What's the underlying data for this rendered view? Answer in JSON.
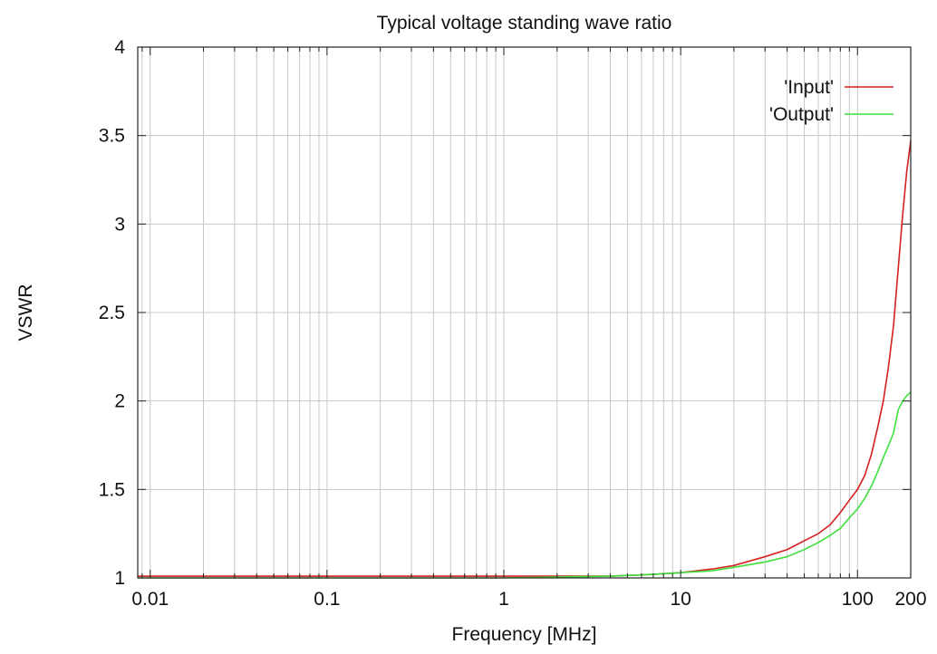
{
  "chart_data": {
    "type": "line",
    "title": "Typical voltage standing wave ratio",
    "xlabel": "Frequency [MHz]",
    "ylabel": "VSWR",
    "xscale": "log",
    "xlim": [
      0.0085,
      200
    ],
    "ylim": [
      1,
      4
    ],
    "grid": true,
    "legend_position": "top-right",
    "x_ticks": [
      {
        "value": 0.01,
        "label": "0.01"
      },
      {
        "value": 0.1,
        "label": "0.1"
      },
      {
        "value": 1,
        "label": "1"
      },
      {
        "value": 10,
        "label": "10"
      },
      {
        "value": 100,
        "label": "100"
      },
      {
        "value": 200,
        "label": "200"
      }
    ],
    "y_ticks": [
      {
        "value": 1,
        "label": "1"
      },
      {
        "value": 1.5,
        "label": "1.5"
      },
      {
        "value": 2,
        "label": "2"
      },
      {
        "value": 2.5,
        "label": "2.5"
      },
      {
        "value": 3,
        "label": "3"
      },
      {
        "value": 3.5,
        "label": "3.5"
      },
      {
        "value": 4,
        "label": "4"
      }
    ],
    "series": [
      {
        "name": "'Input'",
        "color": "#d42020",
        "points": [
          [
            0.0085,
            1.01
          ],
          [
            0.1,
            1.01
          ],
          [
            1,
            1.01
          ],
          [
            4,
            1.01
          ],
          [
            7,
            1.02
          ],
          [
            10,
            1.03
          ],
          [
            15,
            1.05
          ],
          [
            20,
            1.07
          ],
          [
            30,
            1.12
          ],
          [
            40,
            1.16
          ],
          [
            50,
            1.21
          ],
          [
            60,
            1.25
          ],
          [
            70,
            1.3
          ],
          [
            80,
            1.37
          ],
          [
            90,
            1.44
          ],
          [
            100,
            1.5
          ],
          [
            110,
            1.58
          ],
          [
            120,
            1.7
          ],
          [
            130,
            1.85
          ],
          [
            140,
            2.0
          ],
          [
            150,
            2.2
          ],
          [
            160,
            2.43
          ],
          [
            170,
            2.75
          ],
          [
            180,
            3.05
          ],
          [
            190,
            3.3
          ],
          [
            200,
            3.47
          ]
        ]
      },
      {
        "name": "'Output'",
        "color": "#3de03d",
        "points": [
          [
            0.0085,
            1.0
          ],
          [
            0.1,
            1.0
          ],
          [
            1,
            1.0
          ],
          [
            4,
            1.01
          ],
          [
            7,
            1.02
          ],
          [
            10,
            1.03
          ],
          [
            15,
            1.04
          ],
          [
            20,
            1.06
          ],
          [
            30,
            1.09
          ],
          [
            40,
            1.12
          ],
          [
            50,
            1.16
          ],
          [
            60,
            1.2
          ],
          [
            70,
            1.24
          ],
          [
            80,
            1.28
          ],
          [
            90,
            1.34
          ],
          [
            100,
            1.39
          ],
          [
            110,
            1.45
          ],
          [
            120,
            1.52
          ],
          [
            130,
            1.6
          ],
          [
            140,
            1.68
          ],
          [
            150,
            1.75
          ],
          [
            160,
            1.82
          ],
          [
            170,
            1.95
          ],
          [
            180,
            2.0
          ],
          [
            190,
            2.03
          ],
          [
            200,
            2.05
          ]
        ]
      }
    ]
  }
}
